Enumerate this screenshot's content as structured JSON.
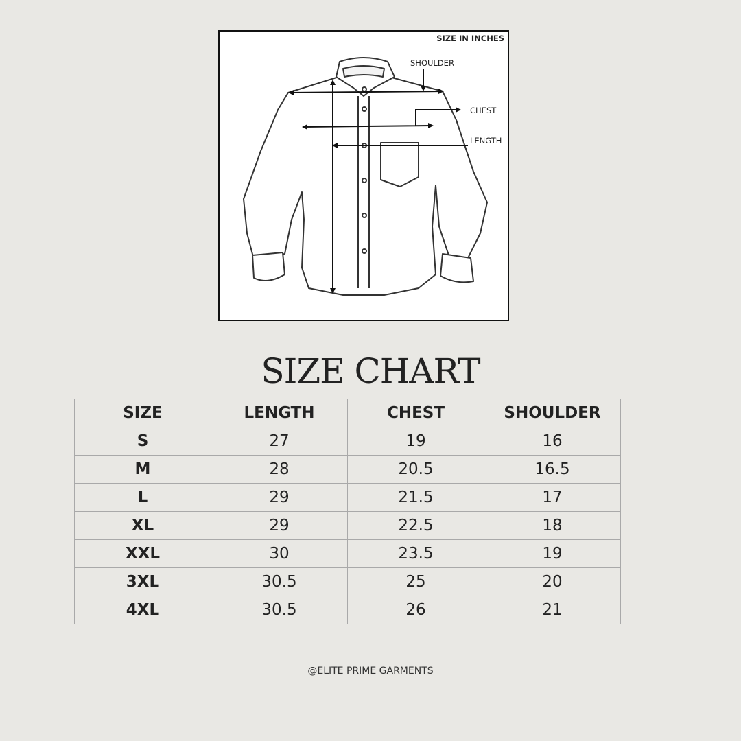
{
  "diagram": {
    "note": "SIZE IN INCHES",
    "labels": [
      "SHOULDER",
      "CHEST",
      "LENGTH"
    ]
  },
  "title": "SIZE CHART",
  "table": {
    "header": [
      "SIZE",
      "LENGTH",
      "CHEST",
      "SHOULDER"
    ],
    "rows": [
      [
        "S",
        27,
        19,
        16
      ],
      [
        "M",
        28,
        20.5,
        16.5
      ],
      [
        "L",
        29,
        21.5,
        17
      ],
      [
        "XL",
        29,
        22.5,
        18
      ],
      [
        "XXL",
        30,
        23.5,
        19
      ],
      [
        "3XL",
        30.5,
        25,
        20
      ],
      [
        "4XL",
        30.5,
        26,
        21
      ]
    ]
  },
  "footer": "@ELITE PRIME GARMENTS"
}
